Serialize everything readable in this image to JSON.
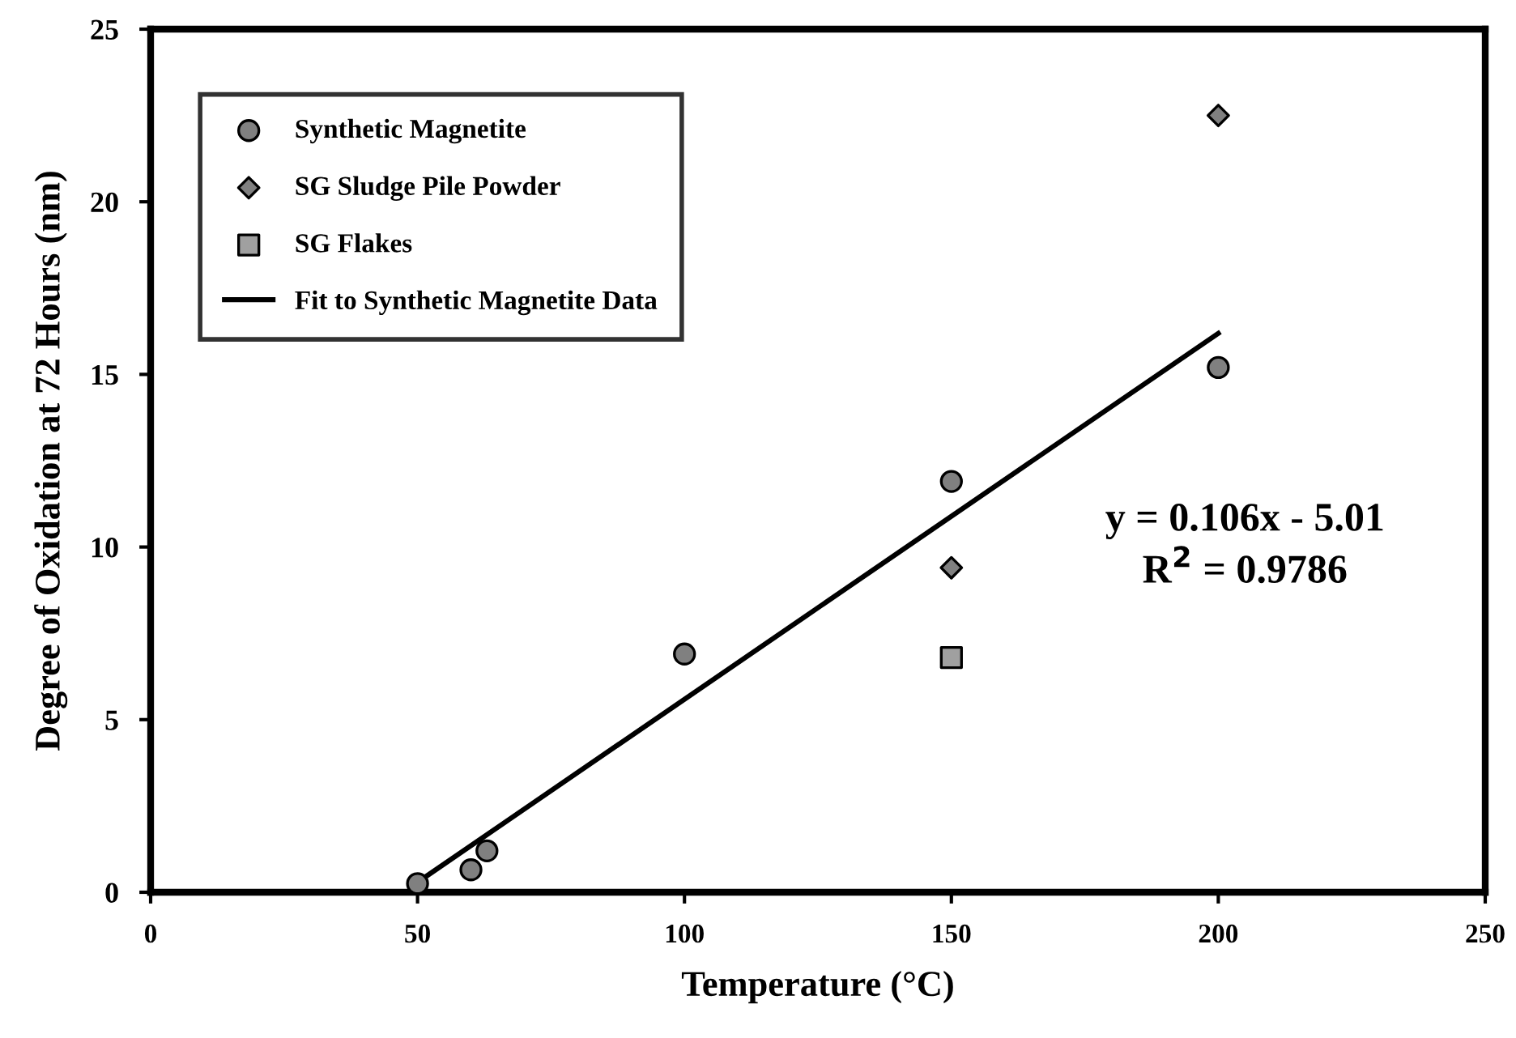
{
  "chart_data": {
    "type": "scatter",
    "xlabel": "Temperature (°C)",
    "ylabel": "Degree of Oxidation at 72 Hours (nm)",
    "xlim": [
      0,
      250
    ],
    "xticks": [
      0,
      50,
      100,
      150,
      200,
      250
    ],
    "ylim": [
      0,
      25
    ],
    "yticks": [
      0,
      5,
      10,
      15,
      20,
      25
    ],
    "grid": false,
    "legend": "top left",
    "series": [
      {
        "name": "Synthetic Magnetite",
        "marker": "circle",
        "color": "#808080",
        "x": [
          50,
          60,
          63,
          100,
          150,
          200
        ],
        "values": [
          0.25,
          0.65,
          1.2,
          6.9,
          11.9,
          15.2
        ]
      },
      {
        "name": "SG Sludge Pile Powder",
        "marker": "diamond",
        "color": "#808080",
        "x": [
          150,
          200
        ],
        "values": [
          9.4,
          22.5
        ]
      },
      {
        "name": "SG Flakes",
        "marker": "square",
        "color": "#a0a0a0",
        "x": [
          150
        ],
        "values": [
          6.8
        ]
      },
      {
        "name": "Fit to Synthetic Magnetite Data",
        "type": "line",
        "marker": "none",
        "line_style": "solid",
        "color": "#000000",
        "x": [
          50,
          200
        ],
        "values": [
          0.29,
          16.19
        ]
      }
    ],
    "annotations": [
      "y = 0.106x - 5.01\nR$^{2}$ = 0.9786"
    ]
  }
}
